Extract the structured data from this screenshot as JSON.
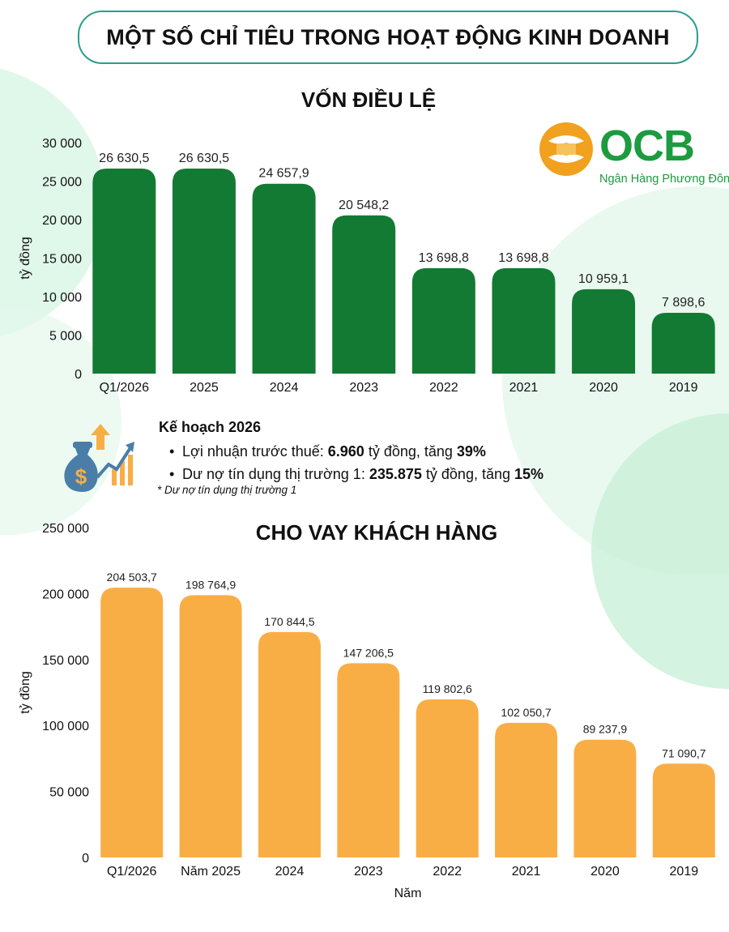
{
  "header": {
    "title": "MỘT SỐ CHỈ TIÊU TRONG HOẠT ĐỘNG KINH DOANH"
  },
  "logo": {
    "text": "OCB",
    "subtitle": "Ngân Hàng Phương Đông"
  },
  "colors": {
    "charter_bar": "#137a33",
    "loan_bar": "#f9ae45",
    "accent": "#1c9b3f",
    "header_border": "#2a9d8f"
  },
  "plan": {
    "title": "Kế hoạch 2026",
    "items": [
      {
        "label": "Lợi nhuận trước thuế: ",
        "value": "6.960",
        "unit": " tỷ đồng, tăng ",
        "growth": "39%"
      },
      {
        "label": "Dư nợ tín dụng thị trường 1: ",
        "value": "235.875",
        "unit": " tỷ đồng, tăng ",
        "growth": "15%"
      }
    ],
    "note": "* Dư nợ tín dụng thị trường 1",
    "icon": "money-bag-growth-icon"
  },
  "chart_data": [
    {
      "type": "bar",
      "title": "VỐN ĐIỀU LỆ",
      "xlabel": "",
      "ylabel": "tỷ đồng",
      "categories": [
        "Q1/2026",
        "2025",
        "2024",
        "2023",
        "2022",
        "2021",
        "2020",
        "2019"
      ],
      "values": [
        26630.5,
        26630.5,
        24657.9,
        20548.2,
        13698.8,
        13698.8,
        10959.1,
        7898.6
      ],
      "value_labels": [
        "26 630,5",
        "26 630,5",
        "24 657,9",
        "20 548,2",
        "13 698,8",
        "13 698,8",
        "10 959,1",
        "7 898,6"
      ],
      "ylim": [
        0,
        30000
      ],
      "yticks": [
        0,
        5000,
        10000,
        15000,
        20000,
        25000,
        30000
      ],
      "ytick_labels": [
        "0",
        "5 000",
        "10 000",
        "15 000",
        "20 000",
        "25 000",
        "30 000"
      ],
      "grid": false
    },
    {
      "type": "bar",
      "title": "CHO VAY KHÁCH HÀNG",
      "xlabel": "Năm",
      "ylabel": "tỷ đồng",
      "categories": [
        "Q1/2026",
        "Năm 2025",
        "2024",
        "2023",
        "2022",
        "2021",
        "2020",
        "2019"
      ],
      "values": [
        204503.7,
        198764.9,
        170844.5,
        147206.5,
        119802.6,
        102050.7,
        89237.9,
        71090.7
      ],
      "value_labels": [
        "204 503,7",
        "198 764,9",
        "170 844,5",
        "147 206,5",
        "119 802,6",
        "102 050,7",
        "89 237,9",
        "71 090,7"
      ],
      "ylim": [
        0,
        250000
      ],
      "yticks": [
        0,
        50000,
        100000,
        150000,
        200000,
        250000
      ],
      "ytick_labels": [
        "0",
        "50 000",
        "100 000",
        "150 000",
        "200 000",
        "250 000"
      ],
      "grid": false
    }
  ]
}
